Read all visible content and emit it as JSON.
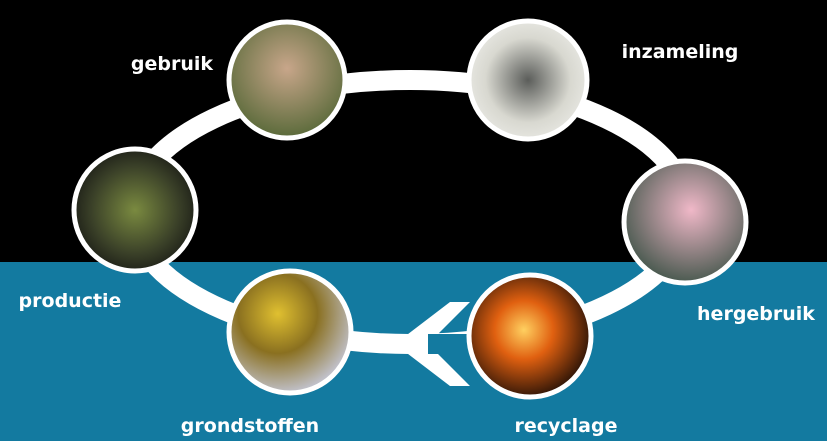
{
  "nodes": [
    {
      "label": "gebruik"
    },
    {
      "label": "inzameling"
    },
    {
      "label": "hergebruik"
    },
    {
      "label": "recyclage"
    },
    {
      "label": "grondstoffen"
    },
    {
      "label": "productie"
    }
  ]
}
